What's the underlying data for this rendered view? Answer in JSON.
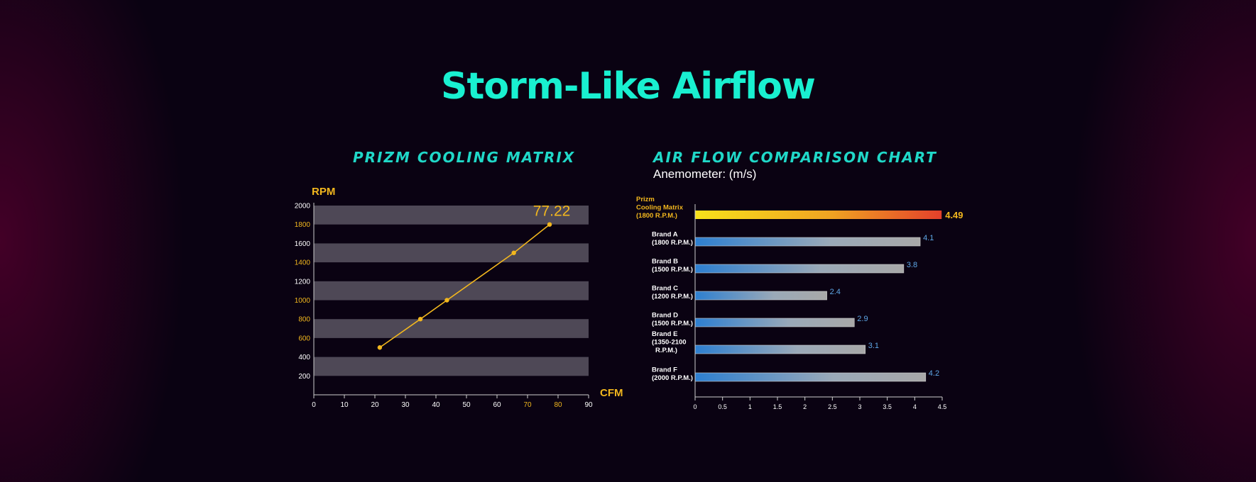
{
  "page": {
    "title": "Storm-Like Airflow",
    "colors": {
      "title": "#19f0d0",
      "chart_title": "#20d8c8",
      "accent_yellow": "#f2b71e",
      "band": "#4e4856",
      "axis": "#cfcfcf",
      "value_blue": "#5fa8e8"
    }
  },
  "chart_data": [
    {
      "type": "line",
      "title": "PRIZM COOLING MATRIX",
      "xlabel": "CFM",
      "ylabel": "RPM",
      "xlim": [
        0,
        90
      ],
      "ylim": [
        0,
        2000
      ],
      "x_ticks": [
        "0",
        "10",
        "20",
        "30",
        "40",
        "50",
        "60",
        "70",
        "80",
        "90"
      ],
      "y_ticks": [
        "200",
        "400",
        "600",
        "800",
        "1000",
        "1200",
        "1400",
        "1600",
        "1800",
        "2000"
      ],
      "highlighted_x_ticks": [
        "70",
        "80"
      ],
      "highlighted_y_ticks": [
        "600",
        "800",
        "1000",
        "1400",
        "1800"
      ],
      "bands": [
        [
          200,
          400
        ],
        [
          600,
          800
        ],
        [
          1000,
          1200
        ],
        [
          1400,
          1600
        ],
        [
          1800,
          2000
        ]
      ],
      "grid": false,
      "series": [
        {
          "x": [
            21.6,
            34.9,
            43.6,
            65.5,
            77.22
          ],
          "y": [
            500,
            800,
            1000,
            1500,
            1800
          ]
        }
      ],
      "annotation": "77.22"
    },
    {
      "type": "bar",
      "orientation": "horizontal",
      "title": "AIR FLOW COMPARISON CHART",
      "subtitle": "Anemometer: (m/s)",
      "xlim": [
        0,
        4.5
      ],
      "x_ticks": [
        "0",
        "0.5",
        "1",
        "1.5",
        "2",
        "2.5",
        "3",
        "3.5",
        "4",
        "4.5"
      ],
      "grid": false,
      "categories": [
        [
          "Prizm",
          "Cooling Matrix",
          "(1800 R.P.M.)"
        ],
        [
          "Brand A",
          "(1800 R.P.M.)"
        ],
        [
          "Brand B",
          "(1500 R.P.M.)"
        ],
        [
          "Brand C",
          "(1200 R.P.M.)"
        ],
        [
          "Brand D",
          "(1500 R.P.M.)"
        ],
        [
          "Brand E",
          "(1350-2100",
          "R.P.M.)"
        ],
        [
          "Brand F",
          "(2000 R.P.M.)"
        ]
      ],
      "values": [
        4.49,
        4.1,
        3.8,
        2.4,
        2.9,
        3.1,
        4.2
      ],
      "value_labels": [
        "4.49",
        "4.1",
        "3.8",
        "2.4",
        "2.9",
        "3.1",
        "4.2"
      ],
      "highlight_index": 0
    }
  ]
}
